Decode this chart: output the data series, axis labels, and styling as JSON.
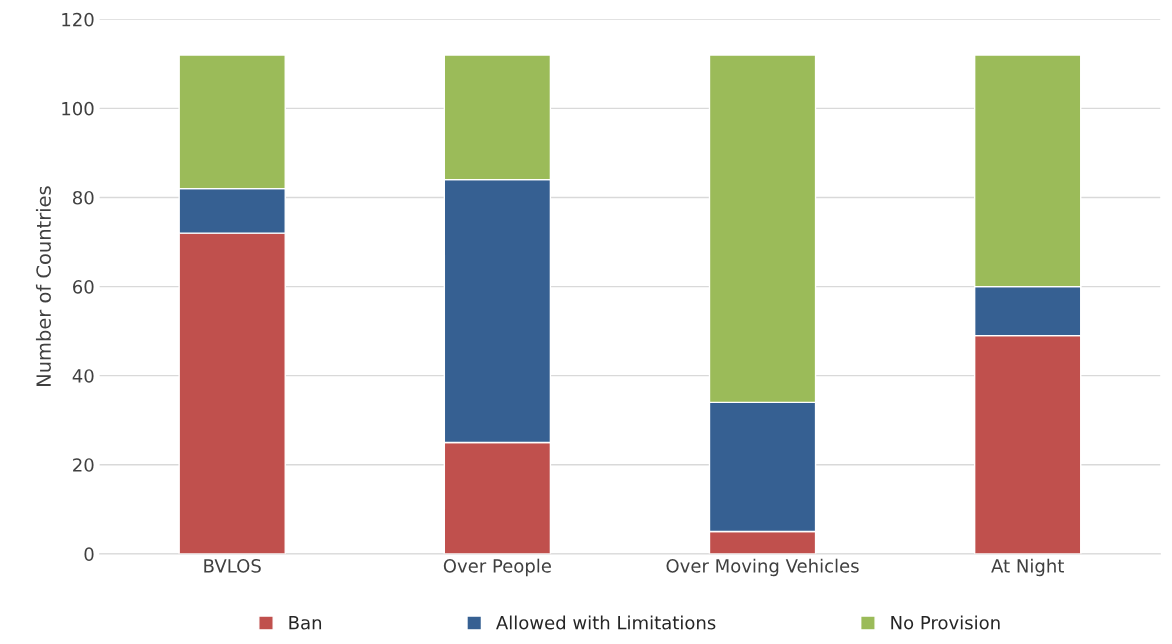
{
  "chart_data": {
    "type": "bar",
    "stacked": true,
    "ylabel": "Number of Countries",
    "categories": [
      "BVLOS",
      "Over People",
      "Over Moving Vehicles",
      "At Night"
    ],
    "series": [
      {
        "name": "Ban",
        "color": "#c0504d",
        "values": [
          72,
          25,
          5,
          49
        ]
      },
      {
        "name": "Allowed with Limitations",
        "color": "#366092",
        "values": [
          10,
          59,
          29,
          11
        ]
      },
      {
        "name": "No Provision",
        "color": "#9bbb59",
        "values": [
          30,
          28,
          78,
          52
        ]
      }
    ],
    "ylim": [
      0,
      120
    ],
    "yticks": [
      0,
      20,
      40,
      60,
      80,
      100,
      120
    ],
    "grid": "y",
    "legend": "bottom"
  }
}
